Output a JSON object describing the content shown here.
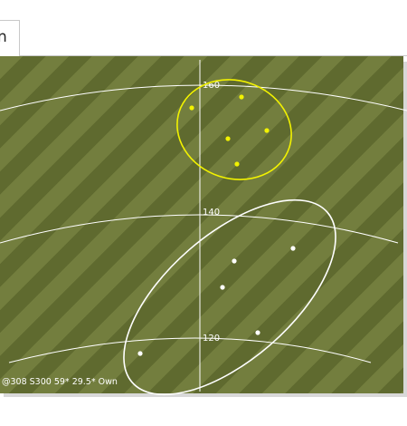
{
  "tab": {
    "label": "n"
  },
  "plot": {
    "range_labels": [
      {
        "text": "160"
      },
      {
        "text": "140"
      },
      {
        "text": "120"
      }
    ],
    "groups": [
      {
        "name": "yellow-group",
        "color": "#f2f200"
      },
      {
        "name": "white-group",
        "color": "#ffffff"
      }
    ]
  },
  "status": {
    "text": "@308 S300 59* 29.5* Own"
  }
}
